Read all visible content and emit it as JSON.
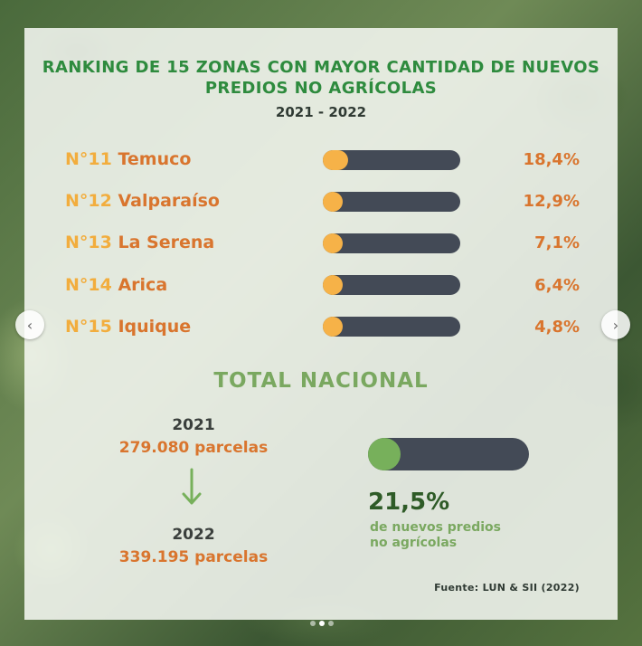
{
  "title": "RANKING DE 15 ZONAS CON MAYOR CANTIDAD DE NUEVOS PREDIOS NO AGRÍCOLAS",
  "years": "2021 - 2022",
  "chart_data": {
    "type": "bar",
    "title": "RANKING DE 15 ZONAS CON MAYOR CANTIDAD DE NUEVOS PREDIOS NO AGRÍCOLAS",
    "subtitle": "2021 - 2022",
    "rows": [
      {
        "rank": "N°11",
        "zone": "Temuco",
        "value": 18.4,
        "label": "18,4%"
      },
      {
        "rank": "N°12",
        "zone": "Valparaíso",
        "value": 12.9,
        "label": "12,9%"
      },
      {
        "rank": "N°13",
        "zone": "La Serena",
        "value": 7.1,
        "label": "7,1%"
      },
      {
        "rank": "N°14",
        "zone": "Arica",
        "value": 6.4,
        "label": "6,4%"
      },
      {
        "rank": "N°15",
        "zone": "Iquique",
        "value": 4.8,
        "label": "4,8%"
      }
    ],
    "ylim": [
      0,
      100
    ],
    "colors": {
      "track": "#434a56",
      "fill": "#f6b248",
      "total_fill": "#77b05b"
    }
  },
  "total": {
    "title": "TOTAL NACIONAL",
    "from_year": "2021",
    "from_value": "279.080 parcelas",
    "to_year": "2022",
    "to_value": "339.195 parcelas",
    "percent": 21.5,
    "percent_label": "21,5%",
    "percent_desc_line1": "de nuevos predios",
    "percent_desc_line2": "no agrícolas"
  },
  "source": "Fuente: LUN & SII (2022)",
  "nav": {
    "prev_icon": "chevron-left-icon",
    "next_icon": "chevron-right-icon",
    "prev": "‹",
    "next": "›"
  }
}
